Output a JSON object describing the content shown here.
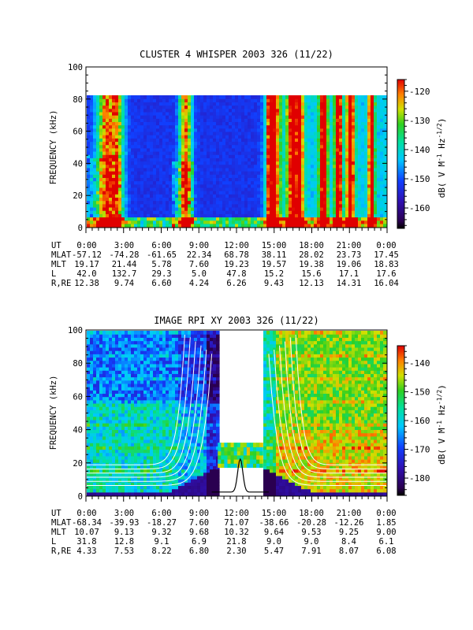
{
  "chart_data": [
    {
      "type": "heatmap",
      "title": "CLUSTER 4 WHISPER 2003 326 (11/22)",
      "ylabel": "FREQUENCY (kHz)",
      "ylim": [
        0,
        100
      ],
      "yticks": [
        "0",
        "20",
        "40",
        "60",
        "80",
        "100"
      ],
      "data_top_khz": 80,
      "colorbar": {
        "label": "dB( V M⁻¹ Hz⁻¹ᐟ²)",
        "label_parts": [
          "dB( V M",
          "-1",
          " Hz",
          "-1/2",
          ")"
        ],
        "range": [
          -167,
          -116
        ],
        "ticks": [
          "-120",
          "-130",
          "-140",
          "-150",
          "-160"
        ]
      },
      "ephemeris": {
        "rows": [
          {
            "label": "UT",
            "values": [
              "0:00",
              "3:00",
              "6:00",
              "9:00",
              "12:00",
              "15:00",
              "18:00",
              "21:00",
              "0:00"
            ]
          },
          {
            "label": "MLAT",
            "values": [
              "-57.12",
              "-74.28",
              "-61.65",
              "22.34",
              "68.78",
              "38.11",
              "28.02",
              "23.73",
              "17.45"
            ]
          },
          {
            "label": "MLT",
            "values": [
              "19.17",
              "21.44",
              "5.78",
              "7.60",
              "19.23",
              "19.57",
              "19.38",
              "19.06",
              "18.83"
            ]
          },
          {
            "label": "L",
            "values": [
              "42.0",
              "132.7",
              "29.3",
              "5.0",
              "47.8",
              "15.2",
              "15.6",
              "17.1",
              "17.6"
            ]
          },
          {
            "label": "R,RE",
            "values": [
              "12.38",
              "9.74",
              "6.60",
              "4.24",
              "6.26",
              "9.43",
              "12.13",
              "14.31",
              "16.04"
            ]
          }
        ]
      }
    },
    {
      "type": "heatmap",
      "title": "IMAGE RPI XY 2003 326 (11/22)",
      "ylabel": "FREQUENCY (kHz)",
      "ylim": [
        0,
        100
      ],
      "yticks": [
        "0",
        "20",
        "40",
        "60",
        "80",
        "100"
      ],
      "gap_ut_hours": [
        10.5,
        14.1
      ],
      "colorbar": {
        "label_parts": [
          "dB( V M",
          "-1",
          " Hz",
          "-1/2",
          ")"
        ],
        "range": [
          -186,
          -134
        ],
        "ticks": [
          "-140",
          "-150",
          "-160",
          "-170",
          "-180"
        ]
      },
      "ephemeris": {
        "rows": [
          {
            "label": "UT",
            "values": [
              "0:00",
              "3:00",
              "6:00",
              "9:00",
              "12:00",
              "15:00",
              "18:00",
              "21:00",
              "0:00"
            ]
          },
          {
            "label": "MLAT",
            "values": [
              "-68.34",
              "-39.93",
              "-18.27",
              "7.60",
              "71.07",
              "-38.66",
              "-20.28",
              "-12.26",
              "1.85"
            ]
          },
          {
            "label": "MLT",
            "values": [
              "10.07",
              "9.13",
              "9.32",
              "9.68",
              "10.32",
              "9.64",
              "9.53",
              "9.25",
              "9.00"
            ]
          },
          {
            "label": "L",
            "values": [
              "31.8",
              "12.8",
              "9.1",
              "6.9",
              "21.8",
              "9.0",
              "9.0",
              "8.4",
              "6.1"
            ]
          },
          {
            "label": "R,RE",
            "values": [
              "4.33",
              "7.53",
              "8.22",
              "6.80",
              "2.30",
              "5.47",
              "7.91",
              "8.07",
              "6.08"
            ]
          }
        ]
      }
    }
  ]
}
